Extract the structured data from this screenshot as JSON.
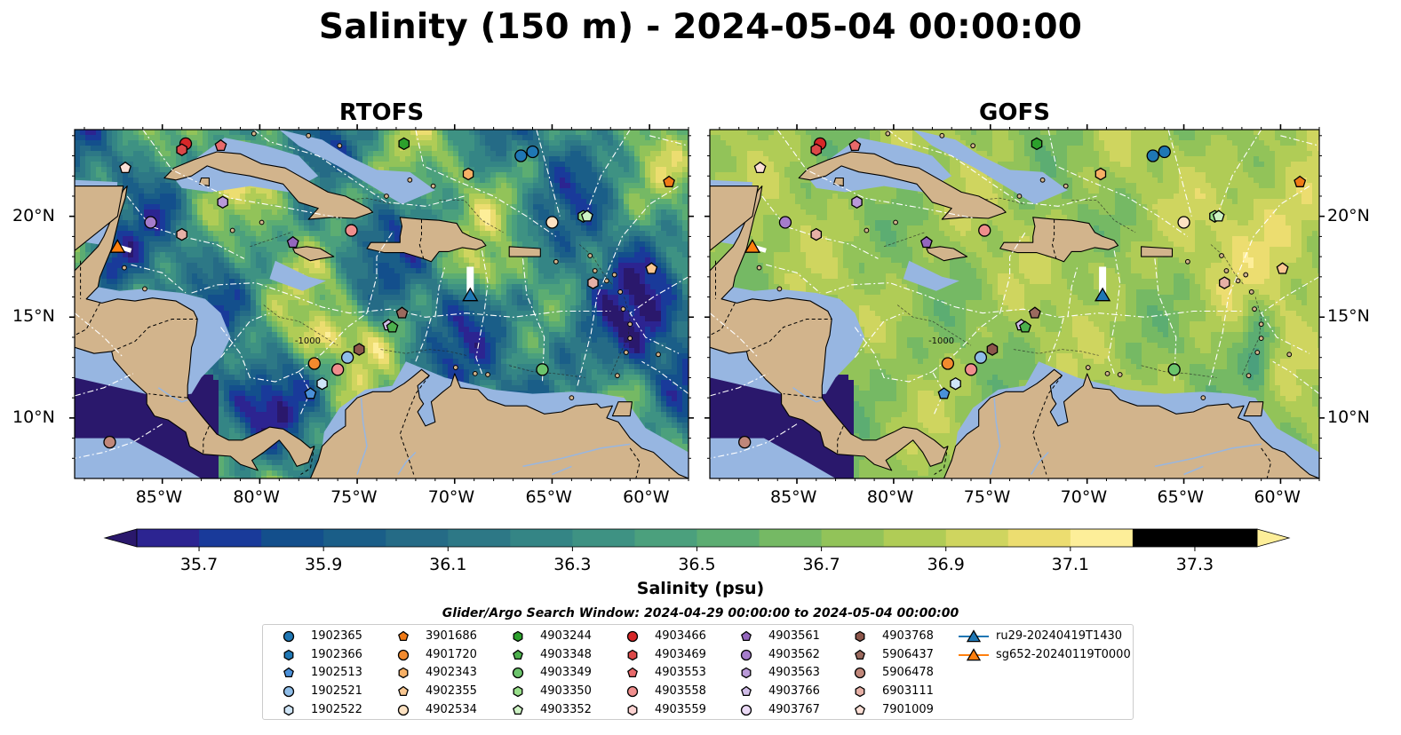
{
  "title": "Salinity (150 m) - 2024-05-04 00:00:00",
  "panels": [
    {
      "title": "RTOFS",
      "model": "rtofs"
    },
    {
      "title": "GOFS",
      "model": "gofs"
    }
  ],
  "map": {
    "lon_range": [
      -89.5,
      -58.0
    ],
    "lat_range": [
      7.0,
      24.3
    ],
    "lon_ticks": [
      {
        "value": -85,
        "label": "85°W"
      },
      {
        "value": -80,
        "label": "80°W"
      },
      {
        "value": -75,
        "label": "75°W"
      },
      {
        "value": -70,
        "label": "70°W"
      },
      {
        "value": -65,
        "label": "65°W"
      },
      {
        "value": -60,
        "label": "60°W"
      }
    ],
    "lat_ticks": [
      {
        "value": 20,
        "label": "20°N"
      },
      {
        "value": 15,
        "label": "15°N"
      },
      {
        "value": 10,
        "label": "10°N"
      }
    ],
    "land_color": "#d2b48c",
    "shelf_color": "#97b6e1",
    "eez_line_color": "#ffffff",
    "contour_label": "-1000"
  },
  "colorbar": {
    "label": "Salinity (psu)",
    "min": 35.6,
    "max": 37.4,
    "step": 0.1,
    "extend": "both",
    "colormap": "haline",
    "ticks": [
      "35.7",
      "35.9",
      "36.1",
      "36.3",
      "36.5",
      "36.7",
      "36.9",
      "37.1",
      "37.3"
    ],
    "colors": [
      "#2a186c",
      "#2c2491",
      "#193a9a",
      "#134f8c",
      "#1a5e88",
      "#256b86",
      "#2d7886",
      "#348585",
      "#3e9283",
      "#4ba07d",
      "#5cad72",
      "#75b964",
      "#92c359",
      "#b0cc56",
      "#cfd55f",
      "#ecdd70",
      "#fdee99"
    ]
  },
  "search_window": "Glider/Argo Search Window: 2024-04-29 00:00:00 to 2024-05-04 00:00:00",
  "legend": [
    {
      "label": "1902365",
      "marker": "circle",
      "color": "#1f77b4"
    },
    {
      "label": "1902366",
      "marker": "hexagon",
      "color": "#1f77b4"
    },
    {
      "label": "1902513",
      "marker": "pentagon",
      "color": "#4a90d9"
    },
    {
      "label": "1902521",
      "marker": "circle",
      "color": "#8fbde8"
    },
    {
      "label": "1902522",
      "marker": "hexagon",
      "color": "#cfe5f7"
    },
    {
      "label": "3901686",
      "marker": "pentagon",
      "color": "#f07a16"
    },
    {
      "label": "4901720",
      "marker": "circle",
      "color": "#f28a2e"
    },
    {
      "label": "4902343",
      "marker": "hexagon",
      "color": "#f7b066"
    },
    {
      "label": "4902355",
      "marker": "pentagon",
      "color": "#f9c791"
    },
    {
      "label": "4902534",
      "marker": "circle",
      "color": "#fde2c2"
    },
    {
      "label": "4903244",
      "marker": "hexagon",
      "color": "#2ca02c"
    },
    {
      "label": "4903348",
      "marker": "pentagon",
      "color": "#4cb04c"
    },
    {
      "label": "4903349",
      "marker": "circle",
      "color": "#6cc46c"
    },
    {
      "label": "4903350",
      "marker": "hexagon",
      "color": "#98df8a"
    },
    {
      "label": "4903352",
      "marker": "pentagon",
      "color": "#cdf2c4"
    },
    {
      "label": "4903466",
      "marker": "circle",
      "color": "#d62728"
    },
    {
      "label": "4903469",
      "marker": "hexagon",
      "color": "#dc4848"
    },
    {
      "label": "4903553",
      "marker": "pentagon",
      "color": "#e8696a"
    },
    {
      "label": "4903558",
      "marker": "circle",
      "color": "#f08e8d"
    },
    {
      "label": "4903559",
      "marker": "hexagon",
      "color": "#fcd3d2"
    },
    {
      "label": "4903561",
      "marker": "pentagon",
      "color": "#9467bd"
    },
    {
      "label": "4903562",
      "marker": "circle",
      "color": "#a57ccb"
    },
    {
      "label": "4903563",
      "marker": "hexagon",
      "color": "#b999d8"
    },
    {
      "label": "4903766",
      "marker": "pentagon",
      "color": "#d1bde8"
    },
    {
      "label": "4903767",
      "marker": "circle",
      "color": "#ead9f5"
    },
    {
      "label": "4903768",
      "marker": "hexagon",
      "color": "#8c564b"
    },
    {
      "label": "5906437",
      "marker": "pentagon",
      "color": "#9b6a5e"
    },
    {
      "label": "5906478",
      "marker": "circle",
      "color": "#c0877a"
    },
    {
      "label": "6903111",
      "marker": "hexagon",
      "color": "#e6b0a6"
    },
    {
      "label": "7901009",
      "marker": "pentagon",
      "color": "#fcdfd6"
    },
    {
      "label": "ru29-20240419T1430",
      "marker": "triangle",
      "color": "#1f77b4",
      "line": true
    },
    {
      "label": "sg652-20240119T0000",
      "marker": "triangle",
      "color": "#ff7f0e",
      "line": true
    }
  ],
  "floats": [
    {
      "id": "4903466",
      "lon": -83.8,
      "lat": 23.6
    },
    {
      "id": "4903469",
      "lon": -84.0,
      "lat": 23.3
    },
    {
      "id": "4903553",
      "lon": -82.0,
      "lat": 23.5
    },
    {
      "id": "4903244",
      "lon": -72.6,
      "lat": 23.6
    },
    {
      "id": "1902365",
      "lon": -66.0,
      "lat": 23.2
    },
    {
      "id": "1902365",
      "lon": -66.6,
      "lat": 23.0
    },
    {
      "id": "7901009",
      "lon": -86.9,
      "lat": 22.4
    },
    {
      "id": "4902343",
      "lon": -69.3,
      "lat": 22.1
    },
    {
      "id": "3901686",
      "lon": -59.0,
      "lat": 21.7
    },
    {
      "id": "4903563",
      "lon": -81.9,
      "lat": 20.7
    },
    {
      "id": "4903562",
      "lon": -85.6,
      "lat": 19.7
    },
    {
      "id": "6903111",
      "lon": -84.0,
      "lat": 19.1
    },
    {
      "id": "4903558",
      "lon": -75.3,
      "lat": 19.3
    },
    {
      "id": "4902534",
      "lon": -65.0,
      "lat": 19.7
    },
    {
      "id": "4903350",
      "lon": -63.4,
      "lat": 20.0
    },
    {
      "id": "4903352",
      "lon": -63.2,
      "lat": 20.0
    },
    {
      "id": "4903561",
      "lon": -78.3,
      "lat": 18.7
    },
    {
      "id": "4902355",
      "lon": -59.9,
      "lat": 17.4
    },
    {
      "id": "6903111",
      "lon": -62.9,
      "lat": 16.7
    },
    {
      "id": "5906437",
      "lon": -72.7,
      "lat": 15.2
    },
    {
      "id": "4903766",
      "lon": -73.4,
      "lat": 14.6
    },
    {
      "id": "4903348",
      "lon": -73.2,
      "lat": 14.5
    },
    {
      "id": "4903768",
      "lon": -74.9,
      "lat": 13.4
    },
    {
      "id": "1902521",
      "lon": -75.5,
      "lat": 13.0
    },
    {
      "id": "4901720",
      "lon": -77.2,
      "lat": 12.7
    },
    {
      "id": "4903558",
      "lon": -76.0,
      "lat": 12.4
    },
    {
      "id": "4903349",
      "lon": -65.5,
      "lat": 12.4
    },
    {
      "id": "1902522",
      "lon": -76.8,
      "lat": 11.7
    },
    {
      "id": "1902513",
      "lon": -77.4,
      "lat": 11.2
    },
    {
      "id": "5906478",
      "lon": -87.7,
      "lat": 8.8
    }
  ],
  "gliders": [
    {
      "id": "ru29-20240419T1430",
      "lon": -69.2,
      "lat": 16.1,
      "track_lat_end": 17.5
    },
    {
      "id": "sg652-20240119T0000",
      "lon": -87.3,
      "lat": 18.5,
      "track_lat_end": 18.5
    }
  ]
}
